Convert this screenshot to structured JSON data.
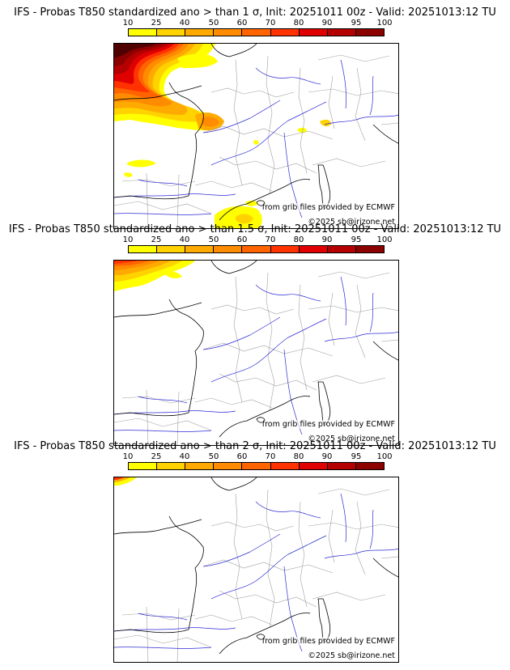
{
  "colorbar": {
    "ticks": [
      "10",
      "25",
      "40",
      "50",
      "60",
      "70",
      "80",
      "90",
      "95",
      "100"
    ],
    "colors": [
      "#ffff00",
      "#ffd200",
      "#ffaa00",
      "#ff8c00",
      "#ff6400",
      "#ff3200",
      "#e10000",
      "#b40000",
      "#8c0000",
      "#500000"
    ]
  },
  "panels": [
    {
      "title": "IFS - Probas T850  standardized ano > than 1 σ, Init: 20251011 00z - Valid: 20251013:12 TU",
      "credit": "from grib files provided by ECMWF",
      "copyright": "©2025 sb@irizone.net"
    },
    {
      "title": "IFS - Probas T850  standardized ano > than 1.5 σ, Init: 20251011 00z - Valid: 20251013:12 TU",
      "credit": "from grib files provided by ECMWF",
      "copyright": "©2025 sb@irizone.net"
    },
    {
      "title": "IFS - Probas T850  standardized ano > than 2 σ, Init: 20251011 00z - Valid: 20251013:12 TU",
      "credit": "from grib files provided by ECMWF",
      "copyright": "©2025 sb@irizone.net"
    }
  ]
}
